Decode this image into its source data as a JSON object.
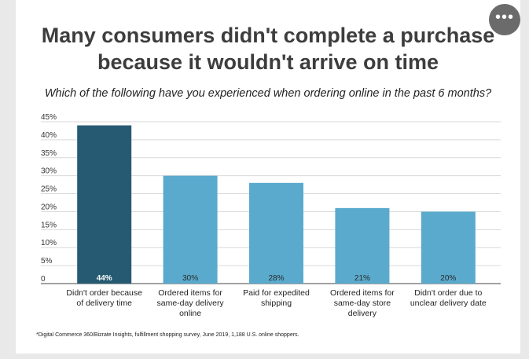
{
  "menu": {
    "icon": "more-horizontal-icon",
    "label": "•••"
  },
  "chart_data": {
    "type": "bar",
    "title_lines": [
      "Many consumers didn't complete a purchase",
      "because it wouldn't arrive on time"
    ],
    "subtitle": "Which of the following have you experienced when ordering online in the past 6 months?",
    "categories": [
      [
        "Didn't order because",
        "of delivery time"
      ],
      [
        "Ordered items for",
        "same-day delivery",
        "online"
      ],
      [
        "Paid for expedited",
        "shipping"
      ],
      [
        "Ordered items for",
        "same-day store",
        "delivery"
      ],
      [
        "Didn't order due to",
        "unclear delivery date"
      ]
    ],
    "values": [
      44,
      30,
      28,
      21,
      20
    ],
    "data_labels": [
      "44%",
      "30%",
      "28%",
      "21%",
      "20%"
    ],
    "bar_colors": [
      "#265a73",
      "#5aaacd",
      "#5aaacd",
      "#5aaacd",
      "#5aaacd"
    ],
    "y_ticks": [
      "0",
      "5%",
      "10%",
      "15%",
      "20%",
      "25%",
      "30%",
      "35%",
      "40%",
      "45%"
    ],
    "ylim": [
      0,
      45
    ],
    "grid": true
  },
  "footnote": "*Digital Commerce 360/Bizrate Insights, fulfillment shopping survey, June 2019, 1,188 U.S. online shoppers."
}
